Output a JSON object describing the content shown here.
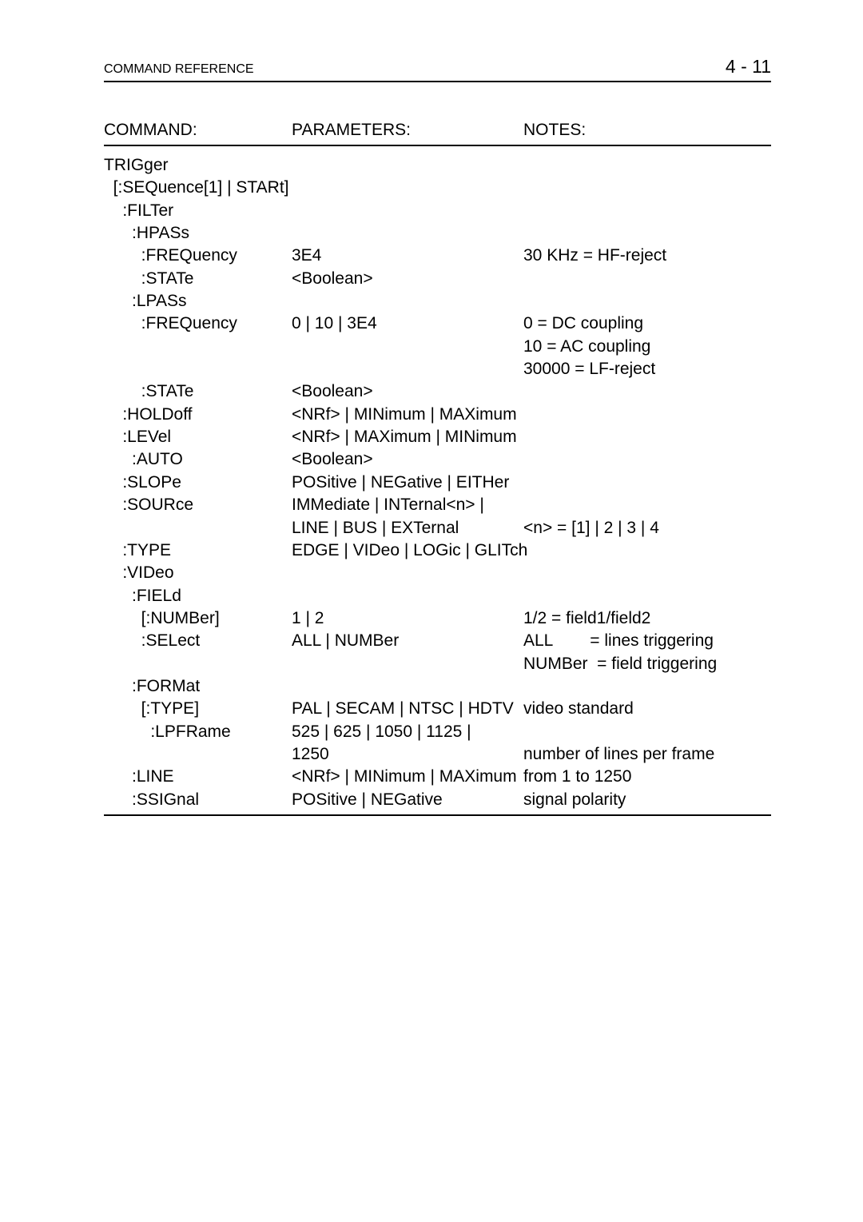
{
  "header": {
    "title": "COMMAND REFERENCE",
    "page": "4 - 11"
  },
  "columns": {
    "command": "COMMAND:",
    "parameters": "PARAMETERS:",
    "notes": "NOTES:"
  },
  "rows": [
    {
      "cmd": "TRIGger",
      "param": "",
      "note": ""
    },
    {
      "cmd": "  [:SEQuence[1] | STARt]",
      "param": "",
      "note": ""
    },
    {
      "cmd": "    :FILTer",
      "param": "",
      "note": ""
    },
    {
      "cmd": "      :HPASs",
      "param": "",
      "note": ""
    },
    {
      "cmd": "        :FREQuency",
      "param": "3E4",
      "note": "30 KHz = HF-reject"
    },
    {
      "cmd": "        :STATe",
      "param": "<Boolean>",
      "note": ""
    },
    {
      "cmd": "      :LPASs",
      "param": "",
      "note": ""
    },
    {
      "cmd": "        :FREQuency",
      "param": "0 | 10 | 3E4",
      "note": "0 = DC coupling"
    },
    {
      "cmd": "",
      "param": "",
      "note": "10 = AC coupling"
    },
    {
      "cmd": "",
      "param": "",
      "note": "30000 = LF-reject"
    },
    {
      "cmd": "        :STATe",
      "param": "<Boolean>",
      "note": ""
    },
    {
      "cmd": "    :HOLDoff",
      "param": "<NRf> | MINimum | MAXimum",
      "note": ""
    },
    {
      "cmd": "    :LEVel",
      "param": "<NRf> | MAXimum | MINimum",
      "note": ""
    },
    {
      "cmd": "      :AUTO",
      "param": "<Boolean>",
      "note": ""
    },
    {
      "cmd": "    :SLOPe",
      "param": "POSitive | NEGative | EITHer",
      "note": ""
    },
    {
      "cmd": "    :SOURce",
      "param": "IMMediate | INTernal<n> |",
      "note": ""
    },
    {
      "cmd": "",
      "param": "LINE | BUS | EXTernal",
      "note": "<n> = [1] | 2 | 3 | 4"
    },
    {
      "cmd": "    :TYPE",
      "param": "EDGE | VIDeo | LOGic | GLITch",
      "note": ""
    },
    {
      "cmd": "    :VIDeo",
      "param": "",
      "note": ""
    },
    {
      "cmd": "      :FIELd",
      "param": "",
      "note": ""
    },
    {
      "cmd": "        [:NUMBer]",
      "param": "1 | 2",
      "note": "1/2 = field1/field2"
    },
    {
      "cmd": "        :SELect",
      "param": "ALL | NUMBer",
      "note": "ALL        = lines triggering"
    },
    {
      "cmd": "",
      "param": "",
      "note": "NUMBer  = field triggering"
    },
    {
      "cmd": "      :FORMat",
      "param": "",
      "note": ""
    },
    {
      "cmd": "        [:TYPE]",
      "param": "PAL | SECAM | NTSC | HDTV",
      "note": "video standard"
    },
    {
      "cmd": "          :LPFRame",
      "param": "525 | 625 | 1050 | 1125 |",
      "note": ""
    },
    {
      "cmd": "",
      "param": "1250",
      "note": "number of lines per frame"
    },
    {
      "cmd": "      :LINE",
      "param": "<NRf> | MINimum | MAXimum",
      "note": "from 1 to 1250"
    },
    {
      "cmd": "      :SSIGnal",
      "param": "POSitive | NEGative",
      "note": "signal polarity"
    }
  ]
}
